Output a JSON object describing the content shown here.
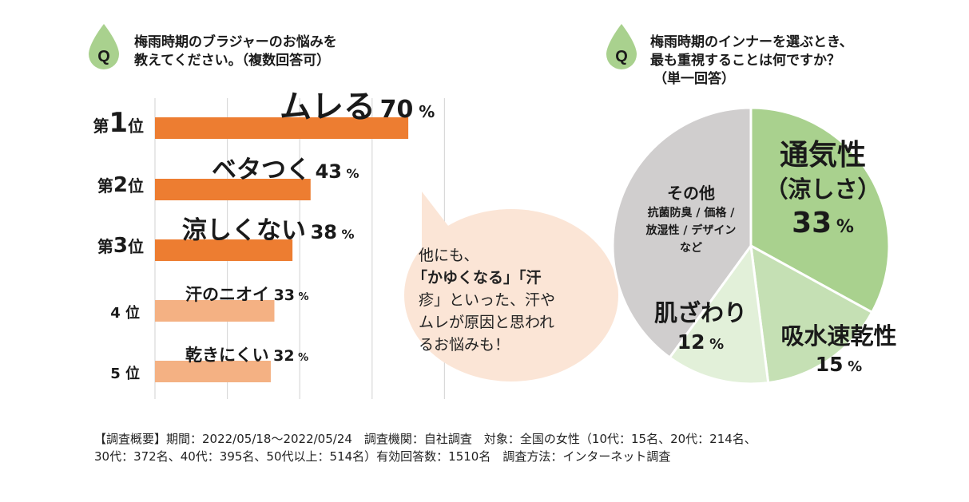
{
  "left_question": {
    "icon_letter": "Q",
    "line1": "梅雨時期のブラジャーのお悩みを",
    "line2": "教えてください。（複数回答可）"
  },
  "right_question": {
    "icon_letter": "Q",
    "line1": "梅雨時期のインナーを選ぶとき、",
    "line2": "最も重視することは何ですか？",
    "line3": "（単一回答）"
  },
  "bubble": {
    "line1": "他にも、",
    "line2": "「かゆくなる」「汗",
    "line3": "疹」といった、汗や",
    "line4": "ムレが原因と思われ",
    "line5": "るお悩みも！"
  },
  "footer": {
    "line1": "【調査概要】期間：2022/05/18〜2022/05/24　調査機関：自社調査　対象：全国の女性（10代：15名、20代：214名、",
    "line2": "30代：372名、40代：395名、50代以上：514名）有効回答数：1510名　調査方法：インターネット調査"
  },
  "colors": {
    "accent_dark": "#ed7d31",
    "accent_light": "#f4b183",
    "q_icon": "#a9d18e",
    "bubble": "#fbe5d6",
    "pie_green": "#a9d18e",
    "pie_mid": "#c5e0b4",
    "pie_light": "#e2f0d9",
    "pie_gray": "#d0cece"
  },
  "chart_data": [
    {
      "type": "bar",
      "orientation": "horizontal",
      "xlim": [
        0,
        100
      ],
      "grid": true,
      "categories": [
        {
          "rank_prefix": "第",
          "rank_num": "1",
          "rank_suffix": "位",
          "label": "ムレる",
          "value": 70,
          "unit": "%",
          "color": "#ed7d31"
        },
        {
          "rank_prefix": "第",
          "rank_num": "2",
          "rank_suffix": "位",
          "label": "ベタつく",
          "value": 43,
          "unit": "%",
          "color": "#ed7d31"
        },
        {
          "rank_prefix": "第",
          "rank_num": "3",
          "rank_suffix": "位",
          "label": "涼しくない",
          "value": 38,
          "unit": "%",
          "color": "#ed7d31"
        },
        {
          "rank_prefix": "",
          "rank_num": "4",
          "rank_suffix": "位",
          "label": "汗のニオイ",
          "value": 33,
          "unit": "%",
          "color": "#f4b183"
        },
        {
          "rank_prefix": "",
          "rank_num": "5",
          "rank_suffix": "位",
          "label": "乾きにくい",
          "value": 32,
          "unit": "%",
          "color": "#f4b183"
        }
      ]
    },
    {
      "type": "pie",
      "slices": [
        {
          "label": "通気性",
          "sublabel": "（涼しさ）",
          "value": 33,
          "unit": "%",
          "color": "#a9d18e"
        },
        {
          "label": "吸水速乾性",
          "sublabel": "",
          "value": 15,
          "unit": "%",
          "color": "#c5e0b4"
        },
        {
          "label": "肌ざわり",
          "sublabel": "",
          "value": 12,
          "unit": "%",
          "color": "#e2f0d9"
        },
        {
          "label": "その他",
          "sublabel": "抗菌防臭 / 価格 /",
          "sublabel2": "放湿性 / デザイン",
          "sublabel3": "など",
          "value": 40,
          "unit": "",
          "color": "#d0cece"
        }
      ]
    }
  ]
}
